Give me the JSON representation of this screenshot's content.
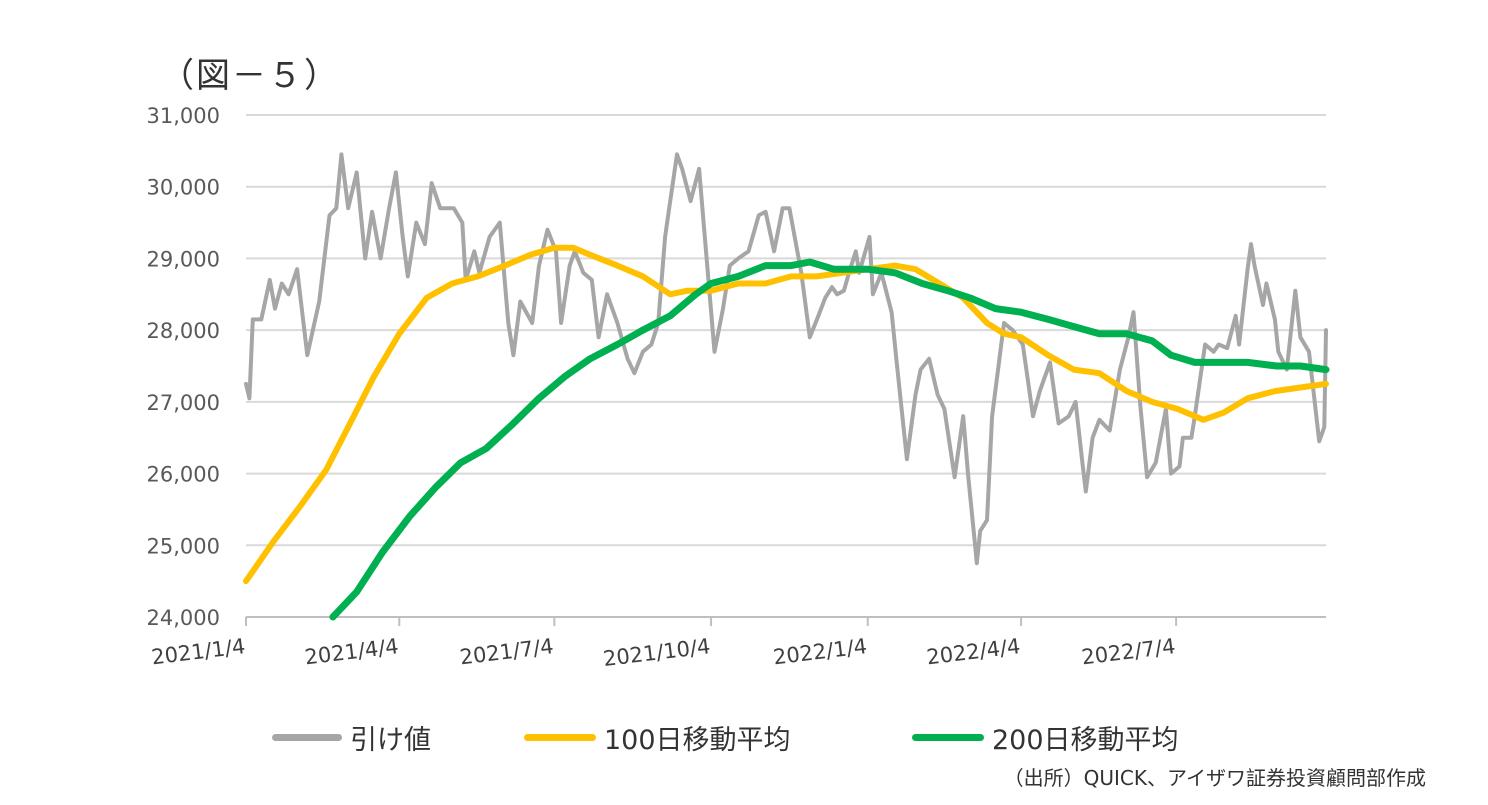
{
  "title": "（図－５）",
  "source": "（出所）QUICK、アイザワ証券投資顧問部作成",
  "chart_data": {
    "type": "line",
    "ylim": [
      24000,
      31000
    ],
    "yticks": [
      "24,000",
      "25,000",
      "26,000",
      "27,000",
      "28,000",
      "29,000",
      "30,000",
      "31,000"
    ],
    "ytick_values": [
      24000,
      25000,
      26000,
      27000,
      28000,
      29000,
      30000,
      31000
    ],
    "x_range": [
      "2021-01-04",
      "2022-09-30"
    ],
    "xticks": [
      {
        "label": "2021/1/4",
        "date": "2021-01-04"
      },
      {
        "label": "2021/4/4",
        "date": "2021-04-04"
      },
      {
        "label": "2021/7/4",
        "date": "2021-07-04"
      },
      {
        "label": "2021/10/4",
        "date": "2021-10-04"
      },
      {
        "label": "2022/1/4",
        "date": "2022-01-04"
      },
      {
        "label": "2022/4/4",
        "date": "2022-04-04"
      },
      {
        "label": "2022/7/4",
        "date": "2022-07-04"
      }
    ],
    "grid": true,
    "legend_position": "bottom",
    "series": [
      {
        "name": "引け値",
        "color": "#a6a6a6",
        "points": [
          [
            "2021-01-04",
            27250
          ],
          [
            "2021-01-06",
            27050
          ],
          [
            "2021-01-08",
            28150
          ],
          [
            "2021-01-13",
            28150
          ],
          [
            "2021-01-18",
            28700
          ],
          [
            "2021-01-21",
            28300
          ],
          [
            "2021-01-25",
            28650
          ],
          [
            "2021-01-29",
            28500
          ],
          [
            "2021-02-03",
            28850
          ],
          [
            "2021-02-09",
            27650
          ],
          [
            "2021-02-16",
            28400
          ],
          [
            "2021-02-22",
            29600
          ],
          [
            "2021-02-26",
            29700
          ],
          [
            "2021-03-01",
            30450
          ],
          [
            "2021-03-05",
            29700
          ],
          [
            "2021-03-10",
            30200
          ],
          [
            "2021-03-15",
            29000
          ],
          [
            "2021-03-19",
            29650
          ],
          [
            "2021-03-24",
            29000
          ],
          [
            "2021-03-29",
            29700
          ],
          [
            "2021-04-02",
            30200
          ],
          [
            "2021-04-06",
            29300
          ],
          [
            "2021-04-09",
            28750
          ],
          [
            "2021-04-14",
            29500
          ],
          [
            "2021-04-19",
            29200
          ],
          [
            "2021-04-23",
            30050
          ],
          [
            "2021-04-28",
            29700
          ],
          [
            "2021-05-06",
            29700
          ],
          [
            "2021-05-11",
            29500
          ],
          [
            "2021-05-13",
            28700
          ],
          [
            "2021-05-18",
            29100
          ],
          [
            "2021-05-21",
            28800
          ],
          [
            "2021-05-27",
            29300
          ],
          [
            "2021-06-02",
            29500
          ],
          [
            "2021-06-07",
            28100
          ],
          [
            "2021-06-10",
            27650
          ],
          [
            "2021-06-14",
            28400
          ],
          [
            "2021-06-21",
            28100
          ],
          [
            "2021-06-25",
            28900
          ],
          [
            "2021-06-30",
            29400
          ],
          [
            "2021-07-05",
            29100
          ],
          [
            "2021-07-08",
            28100
          ],
          [
            "2021-07-13",
            28900
          ],
          [
            "2021-07-16",
            29100
          ],
          [
            "2021-07-21",
            28800
          ],
          [
            "2021-07-26",
            28700
          ],
          [
            "2021-07-30",
            27900
          ],
          [
            "2021-08-04",
            28500
          ],
          [
            "2021-08-10",
            28100
          ],
          [
            "2021-08-16",
            27600
          ],
          [
            "2021-08-20",
            27400
          ],
          [
            "2021-08-25",
            27700
          ],
          [
            "2021-08-30",
            27800
          ],
          [
            "2021-09-03",
            28100
          ],
          [
            "2021-09-07",
            29300
          ],
          [
            "2021-09-10",
            29800
          ],
          [
            "2021-09-14",
            30450
          ],
          [
            "2021-09-17",
            30250
          ],
          [
            "2021-09-22",
            29800
          ],
          [
            "2021-09-27",
            30250
          ],
          [
            "2021-09-30",
            29400
          ],
          [
            "2021-10-06",
            27700
          ],
          [
            "2021-10-11",
            28300
          ],
          [
            "2021-10-15",
            28900
          ],
          [
            "2021-10-20",
            29000
          ],
          [
            "2021-10-26",
            29100
          ],
          [
            "2021-11-01",
            29600
          ],
          [
            "2021-11-05",
            29650
          ],
          [
            "2021-11-10",
            29100
          ],
          [
            "2021-11-15",
            29700
          ],
          [
            "2021-11-19",
            29700
          ],
          [
            "2021-11-26",
            28800
          ],
          [
            "2021-12-01",
            27900
          ],
          [
            "2021-12-06",
            28200
          ],
          [
            "2021-12-10",
            28450
          ],
          [
            "2021-12-14",
            28600
          ],
          [
            "2021-12-17",
            28500
          ],
          [
            "2021-12-21",
            28550
          ],
          [
            "2021-12-24",
            28800
          ],
          [
            "2021-12-28",
            29100
          ],
          [
            "2021-12-30",
            28800
          ],
          [
            "2022-01-05",
            29300
          ],
          [
            "2022-01-07",
            28500
          ],
          [
            "2022-01-12",
            28800
          ],
          [
            "2022-01-18",
            28250
          ],
          [
            "2022-01-21",
            27550
          ],
          [
            "2022-01-27",
            26200
          ],
          [
            "2022-02-01",
            27100
          ],
          [
            "2022-02-04",
            27450
          ],
          [
            "2022-02-09",
            27600
          ],
          [
            "2022-02-14",
            27100
          ],
          [
            "2022-02-18",
            26900
          ],
          [
            "2022-02-24",
            25950
          ],
          [
            "2022-03-01",
            26800
          ],
          [
            "2022-03-04",
            25950
          ],
          [
            "2022-03-08",
            25000
          ],
          [
            "2022-03-09",
            24750
          ],
          [
            "2022-03-11",
            25200
          ],
          [
            "2022-03-15",
            25350
          ],
          [
            "2022-03-18",
            26800
          ],
          [
            "2022-03-25",
            28100
          ],
          [
            "2022-03-30",
            28000
          ],
          [
            "2022-04-05",
            27800
          ],
          [
            "2022-04-11",
            26800
          ],
          [
            "2022-04-15",
            27150
          ],
          [
            "2022-04-21",
            27550
          ],
          [
            "2022-04-26",
            26700
          ],
          [
            "2022-05-02",
            26800
          ],
          [
            "2022-05-06",
            27000
          ],
          [
            "2022-05-10",
            26150
          ],
          [
            "2022-05-12",
            25750
          ],
          [
            "2022-05-16",
            26500
          ],
          [
            "2022-05-20",
            26750
          ],
          [
            "2022-05-26",
            26600
          ],
          [
            "2022-06-01",
            27450
          ],
          [
            "2022-06-06",
            27900
          ],
          [
            "2022-06-09",
            28250
          ],
          [
            "2022-06-13",
            26950
          ],
          [
            "2022-06-17",
            25950
          ],
          [
            "2022-06-22",
            26150
          ],
          [
            "2022-06-28",
            26900
          ],
          [
            "2022-07-01",
            26000
          ],
          [
            "2022-07-06",
            26100
          ],
          [
            "2022-07-08",
            26500
          ],
          [
            "2022-07-13",
            26500
          ],
          [
            "2022-07-15",
            26800
          ],
          [
            "2022-07-21",
            27800
          ],
          [
            "2022-07-26",
            27700
          ],
          [
            "2022-07-29",
            27800
          ],
          [
            "2022-08-03",
            27750
          ],
          [
            "2022-08-08",
            28200
          ],
          [
            "2022-08-10",
            27800
          ],
          [
            "2022-08-15",
            28850
          ],
          [
            "2022-08-17",
            29200
          ],
          [
            "2022-08-19",
            28900
          ],
          [
            "2022-08-24",
            28350
          ],
          [
            "2022-08-26",
            28650
          ],
          [
            "2022-08-31",
            28150
          ],
          [
            "2022-09-02",
            27700
          ],
          [
            "2022-09-07",
            27450
          ],
          [
            "2022-09-12",
            28550
          ],
          [
            "2022-09-15",
            27900
          ],
          [
            "2022-09-20",
            27700
          ],
          [
            "2022-09-26",
            26450
          ],
          [
            "2022-09-29",
            26650
          ],
          [
            "2022-09-30",
            28000
          ]
        ]
      },
      {
        "name": "100日移動平均",
        "color": "#ffc000",
        "points": [
          [
            "2021-01-04",
            24500
          ],
          [
            "2021-01-20",
            25050
          ],
          [
            "2021-02-05",
            25550
          ],
          [
            "2021-02-20",
            26050
          ],
          [
            "2021-03-05",
            26650
          ],
          [
            "2021-03-20",
            27350
          ],
          [
            "2021-04-04",
            27950
          ],
          [
            "2021-04-20",
            28450
          ],
          [
            "2021-05-05",
            28650
          ],
          [
            "2021-05-20",
            28750
          ],
          [
            "2021-06-05",
            28900
          ],
          [
            "2021-06-20",
            29050
          ],
          [
            "2021-07-04",
            29150
          ],
          [
            "2021-07-15",
            29150
          ],
          [
            "2021-07-25",
            29050
          ],
          [
            "2021-08-10",
            28900
          ],
          [
            "2021-08-25",
            28750
          ],
          [
            "2021-09-10",
            28500
          ],
          [
            "2021-09-20",
            28550
          ],
          [
            "2021-10-04",
            28550
          ],
          [
            "2021-10-20",
            28650
          ],
          [
            "2021-11-05",
            28650
          ],
          [
            "2021-11-20",
            28750
          ],
          [
            "2021-12-05",
            28750
          ],
          [
            "2021-12-20",
            28800
          ],
          [
            "2022-01-04",
            28850
          ],
          [
            "2022-01-20",
            28900
          ],
          [
            "2022-02-01",
            28850
          ],
          [
            "2022-02-15",
            28650
          ],
          [
            "2022-03-01",
            28450
          ],
          [
            "2022-03-15",
            28100
          ],
          [
            "2022-03-25",
            27950
          ],
          [
            "2022-04-04",
            27900
          ],
          [
            "2022-04-20",
            27650
          ],
          [
            "2022-05-05",
            27450
          ],
          [
            "2022-05-20",
            27400
          ],
          [
            "2022-06-05",
            27150
          ],
          [
            "2022-06-20",
            27000
          ],
          [
            "2022-07-05",
            26900
          ],
          [
            "2022-07-20",
            26750
          ],
          [
            "2022-08-01",
            26850
          ],
          [
            "2022-08-15",
            27050
          ],
          [
            "2022-08-31",
            27150
          ],
          [
            "2022-09-15",
            27200
          ],
          [
            "2022-09-30",
            27250
          ]
        ]
      },
      {
        "name": "200日移動平均",
        "color": "#00b050",
        "points": [
          [
            "2021-02-24",
            24000
          ],
          [
            "2021-03-10",
            24350
          ],
          [
            "2021-03-25",
            24900
          ],
          [
            "2021-04-10",
            25400
          ],
          [
            "2021-04-25",
            25800
          ],
          [
            "2021-05-10",
            26150
          ],
          [
            "2021-05-25",
            26350
          ],
          [
            "2021-06-10",
            26700
          ],
          [
            "2021-06-25",
            27050
          ],
          [
            "2021-07-10",
            27350
          ],
          [
            "2021-07-25",
            27600
          ],
          [
            "2021-08-10",
            27800
          ],
          [
            "2021-08-25",
            28000
          ],
          [
            "2021-09-10",
            28200
          ],
          [
            "2021-09-25",
            28500
          ],
          [
            "2021-10-04",
            28650
          ],
          [
            "2021-10-20",
            28750
          ],
          [
            "2021-11-05",
            28900
          ],
          [
            "2021-11-20",
            28900
          ],
          [
            "2021-12-01",
            28950
          ],
          [
            "2021-12-15",
            28850
          ],
          [
            "2022-01-04",
            28850
          ],
          [
            "2022-01-20",
            28800
          ],
          [
            "2022-02-05",
            28650
          ],
          [
            "2022-02-20",
            28550
          ],
          [
            "2022-03-05",
            28450
          ],
          [
            "2022-03-20",
            28300
          ],
          [
            "2022-04-04",
            28250
          ],
          [
            "2022-04-20",
            28150
          ],
          [
            "2022-05-05",
            28050
          ],
          [
            "2022-05-20",
            27950
          ],
          [
            "2022-06-05",
            27950
          ],
          [
            "2022-06-20",
            27850
          ],
          [
            "2022-07-01",
            27650
          ],
          [
            "2022-07-15",
            27550
          ],
          [
            "2022-08-01",
            27550
          ],
          [
            "2022-08-15",
            27550
          ],
          [
            "2022-09-01",
            27500
          ],
          [
            "2022-09-15",
            27500
          ],
          [
            "2022-09-30",
            27450
          ]
        ]
      }
    ]
  }
}
